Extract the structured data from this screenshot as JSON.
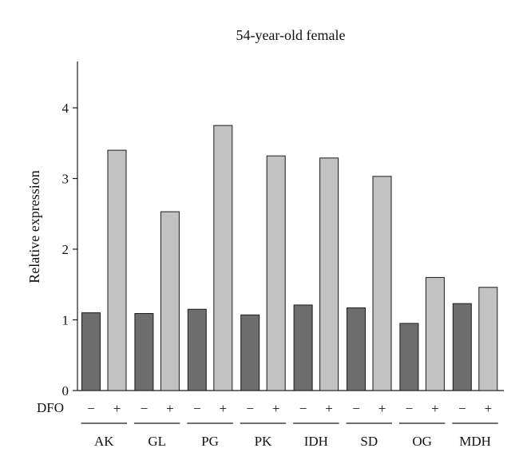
{
  "chart_data": {
    "type": "bar",
    "title": "54-year-old female",
    "xlabel": "",
    "ylabel": "Relative expression",
    "ylim": [
      0,
      4.6
    ],
    "yticks": [
      "0",
      "1",
      "2",
      "3",
      "4"
    ],
    "ytick_values": [
      0,
      1,
      2,
      3,
      4
    ],
    "treatment_label": "DFO",
    "treatment_levels": [
      "−",
      "+"
    ],
    "categories": [
      "AK",
      "GL",
      "PG",
      "PK",
      "IDH",
      "SD",
      "OG",
      "MDH"
    ],
    "series": [
      {
        "name": "−",
        "values": [
          1.1,
          1.09,
          1.15,
          1.07,
          1.21,
          1.17,
          0.95,
          1.23
        ]
      },
      {
        "name": "+",
        "values": [
          3.4,
          2.53,
          3.75,
          3.32,
          3.29,
          3.03,
          1.6,
          1.46
        ]
      }
    ],
    "colors": {
      "minus": "#6d6d6d",
      "plus": "#c2c2c2"
    },
    "grid": false,
    "legend": "none"
  }
}
